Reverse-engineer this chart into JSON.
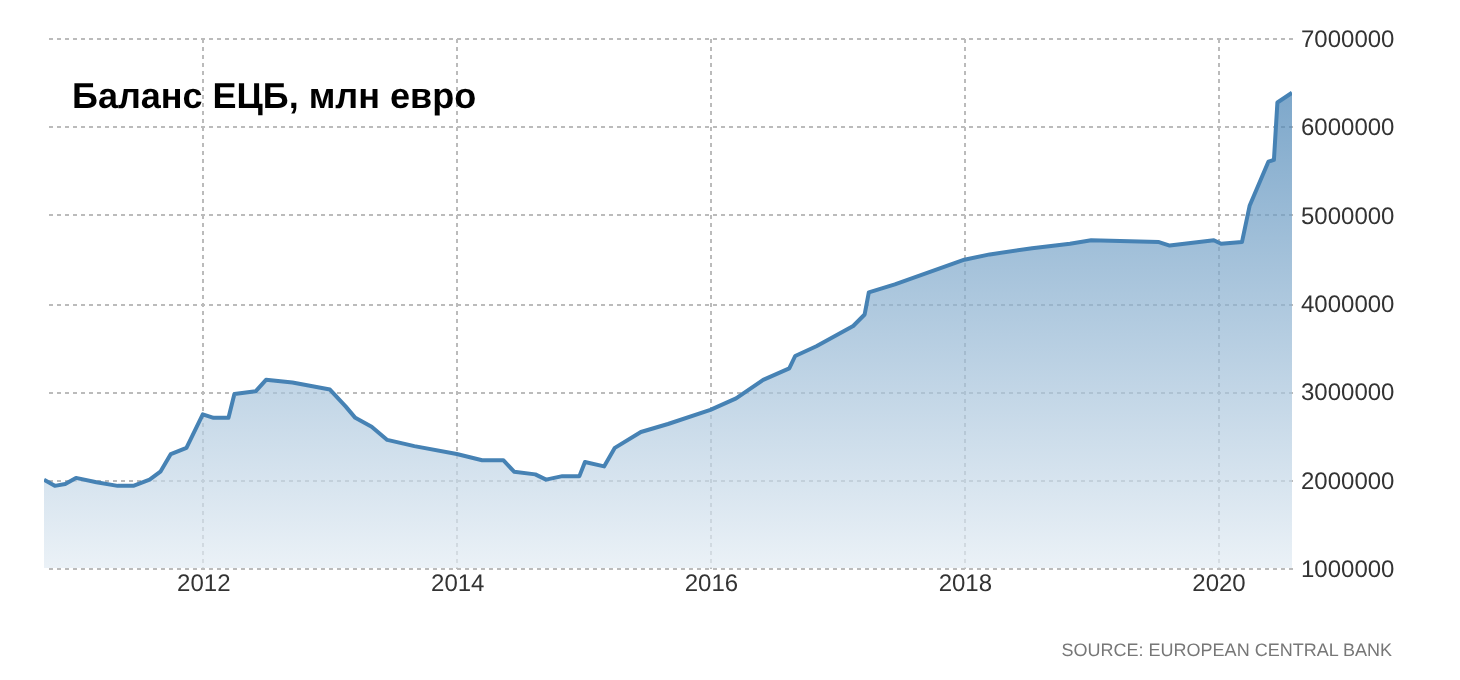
{
  "chart_data": {
    "type": "area",
    "title": "Баланс ЕЦБ, млн евро",
    "annotations": [
      "SOURCE: EUROPEAN CENTRAL BANK"
    ],
    "x": [
      "2010-10-01",
      "2010-11-01",
      "2010-12-01",
      "2011-01-01",
      "2011-03-01",
      "2011-05-01",
      "2011-06-15",
      "2011-08-01",
      "2011-09-01",
      "2011-10-01",
      "2011-11-15",
      "2012-01-01",
      "2012-02-01",
      "2012-03-15",
      "2012-04-01",
      "2012-06-01",
      "2012-07-01",
      "2012-09-15",
      "2013-01-01",
      "2013-02-15",
      "2013-03-15",
      "2013-05-01",
      "2013-06-15",
      "2013-09-01",
      "2014-01-01",
      "2014-03-15",
      "2014-05-15",
      "2014-06-15",
      "2014-08-15",
      "2014-09-15",
      "2014-11-01",
      "2014-12-20",
      "2015-01-05",
      "2015-03-01",
      "2015-04-01",
      "2015-06-15",
      "2015-09-01",
      "2016-01-01",
      "2016-03-15",
      "2016-06-01",
      "2016-08-15",
      "2016-09-01",
      "2016-11-01",
      "2017-02-15",
      "2017-03-20",
      "2017-04-01",
      "2017-06-15",
      "2018-01-01",
      "2018-03-15",
      "2018-07-15",
      "2018-11-01",
      "2019-01-01",
      "2019-07-15",
      "2019-08-15",
      "2019-12-20",
      "2020-01-10",
      "2020-03-10",
      "2020-04-01",
      "2020-05-25",
      "2020-06-10",
      "2020-06-20",
      "2020-08-01"
    ],
    "series": [
      {
        "color": "#4682b4",
        "values": [
          2000000,
          1930000,
          1950000,
          2020000,
          1970000,
          1930000,
          1930000,
          2000000,
          2090000,
          2290000,
          2360000,
          2740000,
          2700000,
          2700000,
          2970000,
          3000000,
          3130000,
          3100000,
          3020000,
          2830000,
          2700000,
          2600000,
          2450000,
          2380000,
          2290000,
          2220000,
          2220000,
          2090000,
          2060000,
          2000000,
          2040000,
          2040000,
          2200000,
          2150000,
          2360000,
          2540000,
          2630000,
          2790000,
          2920000,
          3130000,
          3260000,
          3400000,
          3510000,
          3740000,
          3870000,
          4120000,
          4210000,
          4490000,
          4550000,
          4620000,
          4670000,
          4710000,
          4690000,
          4650000,
          4710000,
          4670000,
          4690000,
          5100000,
          5600000,
          5620000,
          6270000,
          6380000
        ]
      }
    ],
    "xlim": [
      "2010-10-01",
      "2020-08-01"
    ],
    "xticks": [
      {
        "value": "2012-01-01",
        "label": "2012"
      },
      {
        "value": "2014-01-01",
        "label": "2014"
      },
      {
        "value": "2016-01-01",
        "label": "2016"
      },
      {
        "value": "2018-01-01",
        "label": "2018"
      },
      {
        "value": "2020-01-01",
        "label": "2020"
      }
    ],
    "ylim": [
      1000000,
      7000000
    ],
    "yticks": [
      1000000,
      2000000,
      3000000,
      4000000,
      5000000,
      6000000,
      7000000
    ],
    "grid": true
  }
}
